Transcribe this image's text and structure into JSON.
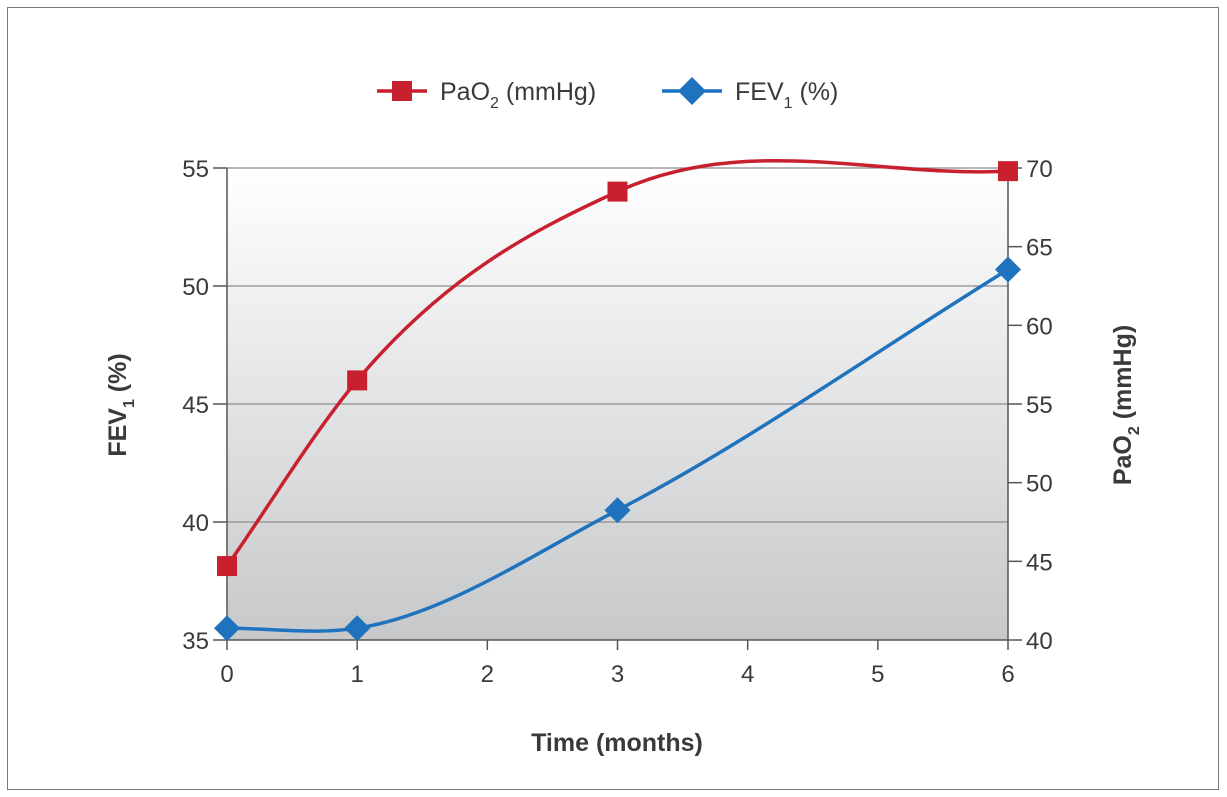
{
  "chart_data": {
    "type": "line",
    "xlabel": {
      "main": "Time (months)"
    },
    "ylabel_left": {
      "main": "FEV",
      "sub": "1",
      "tail": " (%)"
    },
    "ylabel_right": {
      "main": "PaO",
      "sub": "2",
      "tail": " (mmHg)"
    },
    "x_ticks": [
      "0",
      "1",
      "2",
      "3",
      "4",
      "5",
      "6"
    ],
    "xlim": [
      0,
      6
    ],
    "ylim_left": [
      35,
      55
    ],
    "ylim_right": [
      40,
      70
    ],
    "y_ticks_left": [
      "35",
      "40",
      "45",
      "50",
      "55"
    ],
    "y_ticks_right": [
      "40",
      "45",
      "50",
      "55",
      "60",
      "65",
      "70"
    ],
    "grid": "horizontal",
    "legend_position": "top-center",
    "series": [
      {
        "name": {
          "main": "PaO",
          "sub": "2",
          "tail": " (mmHg)"
        },
        "axis": "right",
        "marker": "square",
        "color": "#c8202f",
        "x": [
          0,
          1,
          3,
          6
        ],
        "y": [
          44.7,
          56.5,
          68.5,
          69.8
        ]
      },
      {
        "name": {
          "main": "FEV",
          "sub": "1",
          "tail": " (%)"
        },
        "axis": "left",
        "marker": "diamond",
        "color": "#1f73be",
        "x": [
          0,
          1,
          3,
          6
        ],
        "y": [
          35.5,
          35.5,
          40.5,
          50.7
        ]
      }
    ]
  }
}
